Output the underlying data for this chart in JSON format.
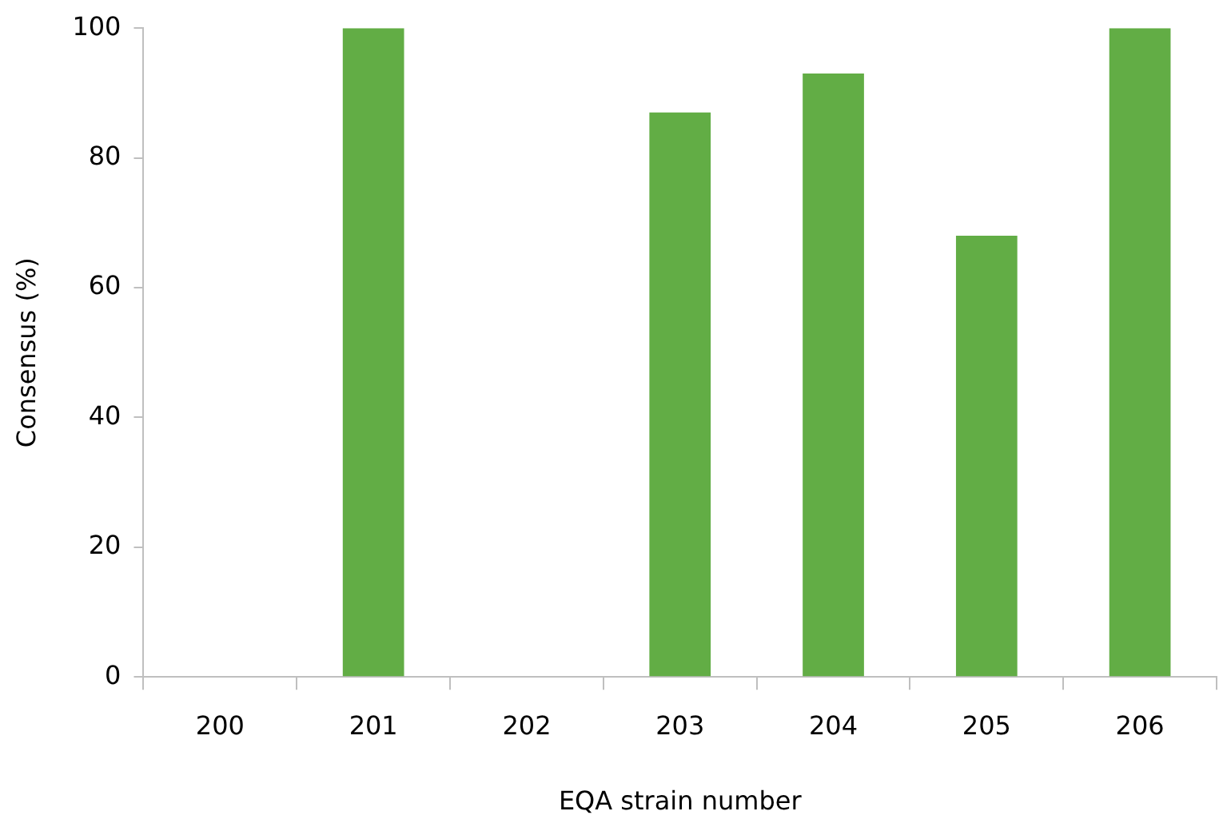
{
  "chart_data": {
    "type": "bar",
    "xlabel": "EQA strain number",
    "ylabel": "Consensus (%)",
    "categories": [
      "200",
      "201",
      "202",
      "203",
      "204",
      "205",
      "206"
    ],
    "values": [
      0,
      100,
      0,
      87,
      93,
      68,
      100
    ],
    "color": "#62ad45",
    "ylim": [
      0,
      100
    ],
    "yticks": [
      0,
      20,
      40,
      60,
      80,
      100
    ],
    "grid": false
  }
}
